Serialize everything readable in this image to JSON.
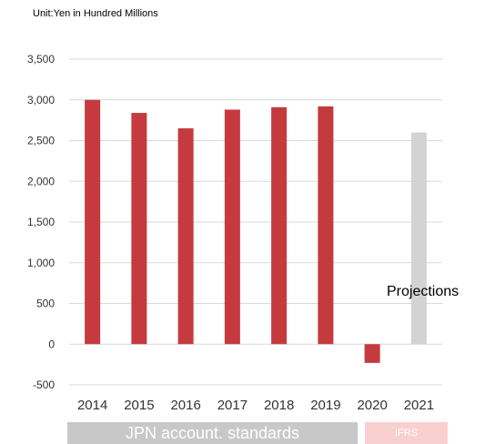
{
  "chart_data": {
    "type": "bar",
    "unit_label": "Unit:Yen in Hundred Millions",
    "categories": [
      "2014",
      "2015",
      "2016",
      "2017",
      "2018",
      "2019",
      "2020",
      "2021"
    ],
    "values": [
      3000,
      2840,
      2650,
      2880,
      2910,
      2920,
      -230,
      2600
    ],
    "bar_types": [
      "actual",
      "actual",
      "actual",
      "actual",
      "actual",
      "actual",
      "actual",
      "projection"
    ],
    "ylim": [
      -500,
      3500
    ],
    "yticks": [
      -500,
      0,
      500,
      1000,
      1500,
      2000,
      2500,
      3000,
      3500
    ],
    "ytick_labels": [
      "-500",
      "0",
      "500",
      "1,000",
      "1,500",
      "2,000",
      "2,500",
      "3,000",
      "3,500"
    ],
    "grid": true,
    "annotation": "Projections",
    "bands": [
      {
        "label": "JPN account. standards",
        "color": "#c8c8c8"
      },
      {
        "label": "IFRS",
        "color": "#f8d0d0"
      }
    ],
    "colors": {
      "actual": "#c43a3f",
      "projection": "#d3d3d3",
      "grid": "#d9d9d9"
    }
  }
}
